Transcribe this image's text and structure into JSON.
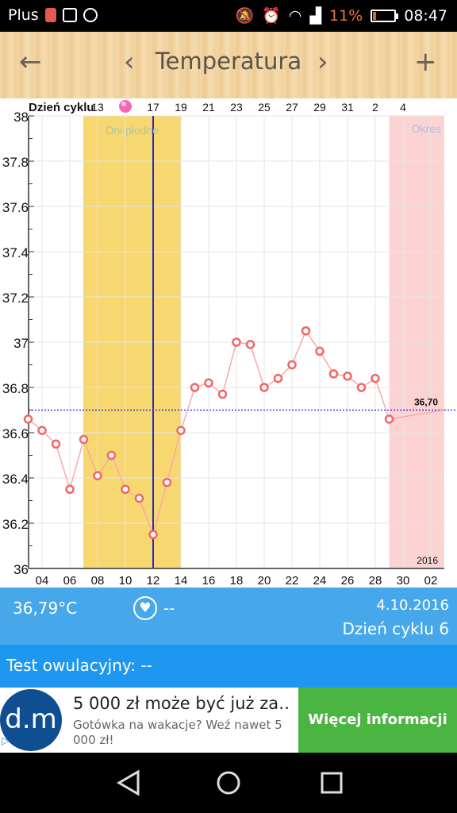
{
  "statusbar": {
    "carrier": "Plus",
    "battery_percent": "11%",
    "time": "08:47",
    "icons": [
      "sim-icon",
      "image-icon",
      "messenger-icon",
      "mute-icon",
      "alarm-icon",
      "wifi-icon",
      "signal-icon",
      "battery-icon"
    ]
  },
  "appbar": {
    "title": "Temperatura",
    "back_icon": "←",
    "prev_icon": "‹",
    "next_icon": "›",
    "add_icon": "+"
  },
  "chart_data": {
    "type": "line",
    "cycle_label": "Dzień cyklu",
    "cycle_ticks": [
      "13",
      "",
      "17",
      "19",
      "21",
      "23",
      "25",
      "27",
      "29",
      "31",
      "2",
      "4"
    ],
    "x_ticks": [
      "04",
      "06",
      "08",
      "10",
      "12",
      "14",
      "16",
      "18",
      "20",
      "22",
      "24",
      "26",
      "28",
      "30",
      "02"
    ],
    "y_ticks": [
      "36",
      "36.2",
      "36.4",
      "36.6",
      "36.8",
      "37",
      "37.2",
      "37.4",
      "37.6",
      "37.8",
      "38"
    ],
    "ylim": [
      36,
      38
    ],
    "x_start": 3,
    "fertile": {
      "label": "Dni płodne",
      "from": 7,
      "to": 14,
      "color": "#f7d770"
    },
    "period": {
      "label": "Okres",
      "from": 29,
      "to": 32,
      "color": "#fcd3d3"
    },
    "ovulation_day": 12,
    "coverline": {
      "value": 36.7,
      "label": "36,70"
    },
    "year_label": "2016",
    "series": [
      {
        "color": "#f06767",
        "x": [
          3,
          4,
          5,
          6,
          7,
          8,
          9,
          10,
          11,
          12,
          13,
          14,
          15,
          16,
          17,
          18,
          19,
          20,
          21,
          22,
          23,
          24,
          25,
          26,
          27,
          28,
          29
        ],
        "values": [
          36.66,
          36.61,
          36.55,
          36.35,
          36.57,
          36.41,
          36.5,
          36.35,
          36.31,
          36.15,
          36.38,
          36.61,
          36.8,
          36.82,
          36.77,
          37.0,
          36.99,
          36.8,
          36.84,
          36.9,
          37.05,
          36.96,
          36.86,
          36.85,
          36.8,
          36.84,
          36.66
        ]
      }
    ]
  },
  "info": {
    "temperature": "36,79°C",
    "heart_value": "--",
    "date": "4.10.2016",
    "cycle_day": "Dzień cyklu 6"
  },
  "ovulation_test": {
    "label": "Test owulacyjny: --"
  },
  "ad": {
    "logo_text": "d.m",
    "headline": "5 000 zł może być już za…",
    "subtext": "Gotówka na wakacje? Weź nawet 5 000 zł!",
    "cta": "Więcej informacji"
  }
}
